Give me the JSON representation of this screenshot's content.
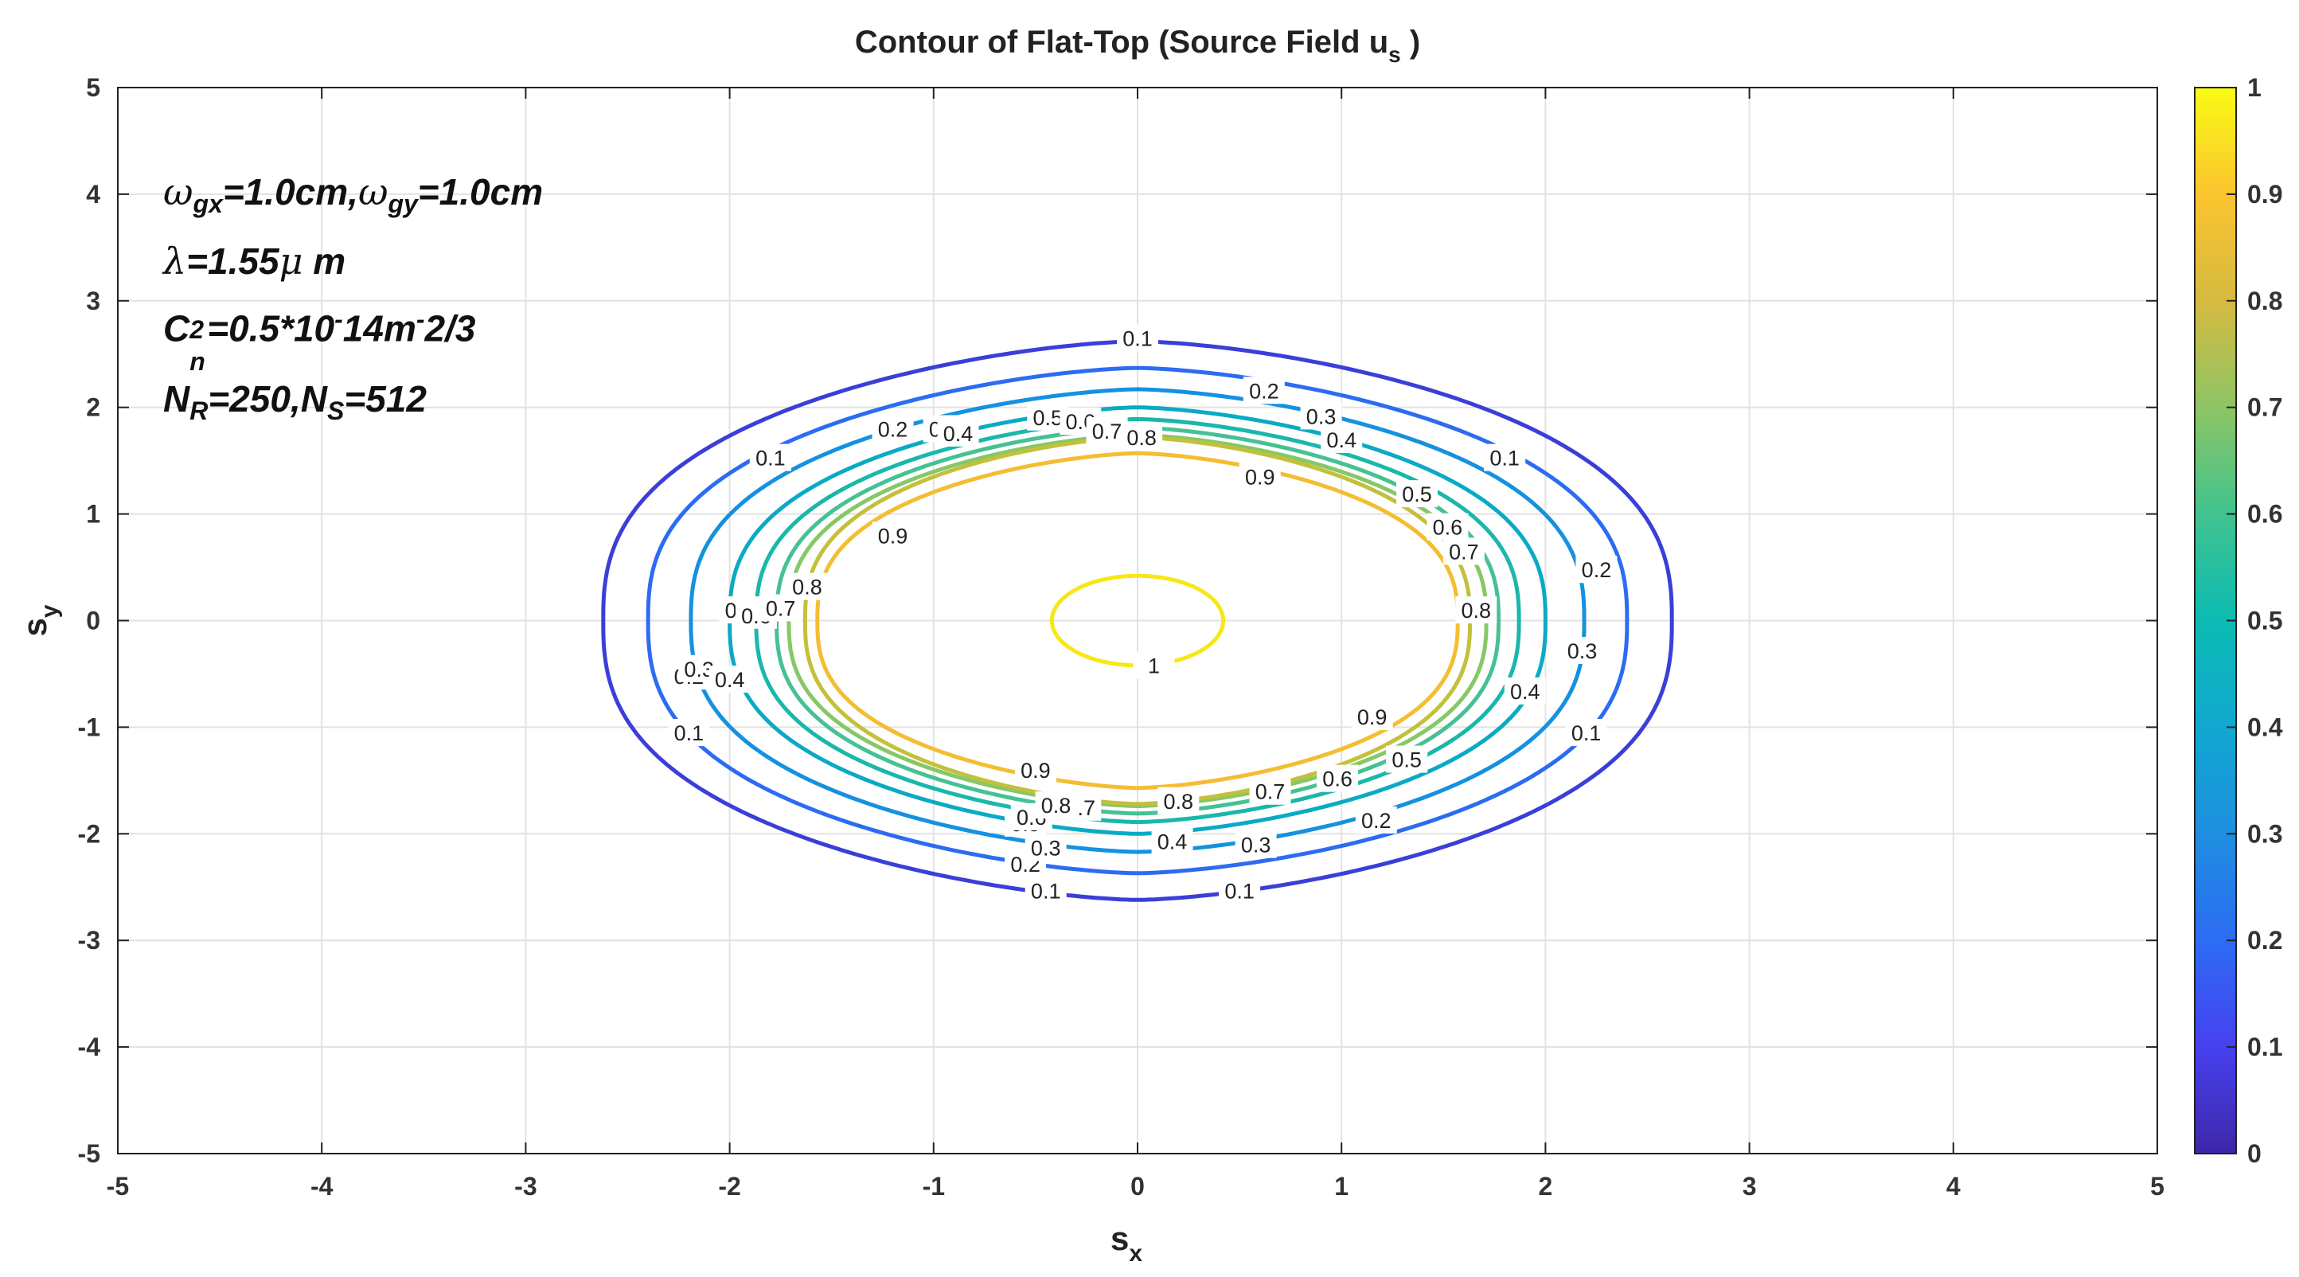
{
  "chart_data": {
    "type": "contour",
    "title": "Contour of Flat-Top (Source Field u",
    "title_sub": "s",
    "title_end": " )",
    "xlabel": "s",
    "xlabel_sub": "x",
    "ylabel": "s",
    "ylabel_sub": "y",
    "xlim": [
      -5,
      5
    ],
    "ylim": [
      -5,
      5
    ],
    "xticks": [
      "-5",
      "-4",
      "-3",
      "-2",
      "-1",
      "0",
      "1",
      "2",
      "3",
      "4",
      "5"
    ],
    "yticks": [
      "5",
      "4",
      "3",
      "2",
      "1",
      "0",
      "-1",
      "-2",
      "-3",
      "-4",
      "-5"
    ],
    "grid": true,
    "colormap": "parula",
    "clim": [
      0,
      1
    ],
    "colorbar_ticks": [
      "1",
      "0.9",
      "0.8",
      "0.7",
      "0.6",
      "0.5",
      "0.4",
      "0.3",
      "0.2",
      "0.1",
      "0"
    ],
    "levels": [
      0.1,
      0.2,
      0.3,
      0.4,
      0.5,
      0.6,
      0.7,
      0.8,
      0.9,
      1
    ],
    "contours": [
      {
        "level": 0.1,
        "x_halfwidth": 2.62,
        "y_halfheight": 2.62,
        "color": "#3a3fd8",
        "labels": [
          [
            "0.1",
            0,
            2.65
          ],
          [
            "0.1",
            -1.8,
            1.53
          ],
          [
            "0.1",
            1.8,
            1.53
          ],
          [
            "0.1",
            -2.2,
            -1.05
          ],
          [
            "0.1",
            2.2,
            -1.05
          ],
          [
            "0.1",
            -0.45,
            -2.53
          ],
          [
            "0.1",
            0.5,
            -2.53
          ]
        ]
      },
      {
        "level": 0.2,
        "x_halfwidth": 2.4,
        "y_halfheight": 2.37,
        "color": "#2c6cf2",
        "labels": [
          [
            "0.2",
            -1.2,
            1.8
          ],
          [
            "0.2",
            0.62,
            2.16
          ],
          [
            "0.2",
            2.25,
            0.48
          ],
          [
            "0.2",
            -2.2,
            -0.52
          ],
          [
            "0.2",
            -0.55,
            -2.28
          ],
          [
            "0.2",
            1.17,
            -1.87
          ]
        ]
      },
      {
        "level": 0.3,
        "x_halfwidth": 2.19,
        "y_halfheight": 2.17,
        "color": "#1591e0",
        "labels": [
          [
            "0.3",
            -0.95,
            1.8
          ],
          [
            "0.3",
            0.9,
            1.92
          ],
          [
            "0.3",
            2.18,
            -0.28
          ],
          [
            "0.3",
            -2.15,
            -0.45
          ],
          [
            "0.3",
            -0.45,
            -2.13
          ],
          [
            "0.3",
            0.58,
            -2.1
          ]
        ]
      },
      {
        "level": 0.4,
        "x_halfwidth": 2.0,
        "y_halfheight": 2.0,
        "color": "#0aaac5",
        "labels": [
          [
            "0.4",
            -0.88,
            1.76
          ],
          [
            "0.4",
            1.0,
            1.7
          ],
          [
            "0.4",
            1.9,
            -0.66
          ],
          [
            "0.4",
            -2.0,
            -0.55
          ],
          [
            "0.4",
            0.17,
            -2.07
          ]
        ]
      },
      {
        "level": 0.5,
        "x_halfwidth": 1.87,
        "y_halfheight": 1.89,
        "color": "#1ab7ab",
        "labels": [
          [
            "0.5",
            -0.44,
            1.91
          ],
          [
            "0.5",
            1.37,
            1.19
          ],
          [
            "0.5",
            1.32,
            -1.3
          ],
          [
            "0.5",
            -1.95,
            0.1
          ],
          [
            "0.5",
            -0.55,
            -1.9
          ]
        ]
      },
      {
        "level": 0.6,
        "x_halfwidth": 1.77,
        "y_halfheight": 1.81,
        "color": "#46c193",
        "labels": [
          [
            "0.6",
            -0.28,
            1.87
          ],
          [
            "0.6",
            1.52,
            0.88
          ],
          [
            "0.6",
            0.98,
            -1.48
          ],
          [
            "0.6",
            -1.87,
            0.05
          ],
          [
            "0.6",
            -0.52,
            -1.84
          ]
        ]
      },
      {
        "level": 0.7,
        "x_halfwidth": 1.71,
        "y_halfheight": 1.74,
        "color": "#86c867",
        "labels": [
          [
            "0.7",
            -0.15,
            1.78
          ],
          [
            "0.7",
            1.6,
            0.65
          ],
          [
            "0.7",
            0.65,
            -1.6
          ],
          [
            "0.7",
            -1.75,
            0.12
          ],
          [
            "0.7",
            -0.28,
            -1.75
          ]
        ]
      },
      {
        "level": 0.8,
        "x_halfwidth": 1.63,
        "y_halfheight": 1.72,
        "color": "#c3c03b",
        "labels": [
          [
            "0.8",
            0.02,
            1.72
          ],
          [
            "0.8",
            1.66,
            0.1
          ],
          [
            "0.8",
            0.2,
            -1.69
          ],
          [
            "0.8",
            -1.62,
            0.32
          ],
          [
            "0.8",
            -0.4,
            -1.73
          ]
        ]
      },
      {
        "level": 0.9,
        "x_halfwidth": 1.57,
        "y_halfheight": 1.57,
        "color": "#f4bd32",
        "labels": [
          [
            "0.9",
            0.6,
            1.35
          ],
          [
            "0.9",
            -1.2,
            0.8
          ],
          [
            "0.9",
            1.15,
            -0.9
          ],
          [
            "0.9",
            -0.5,
            -1.4
          ]
        ]
      },
      {
        "level": 1,
        "x_halfwidth": 0.42,
        "y_halfheight": 0.42,
        "color": "#f7e716",
        "labels": [
          [
            "1",
            0.08,
            -0.42
          ]
        ]
      }
    ]
  },
  "annotation": {
    "line1": {
      "w1": "ω",
      "s1": "gx",
      "t1": "=1.0cm,",
      "w2": "ω",
      "s2": "gy",
      "t2": "=1.0cm"
    },
    "line2": {
      "g": "λ",
      "t": "=1.55",
      "mu": "μ",
      "m": " m"
    },
    "line3": {
      "c": "C",
      "sup": "2",
      "sub": "n",
      "t": "=0.5*10",
      "e1": "-",
      "u": "14m",
      "e2": "-",
      "tail": "2/3"
    },
    "line4": {
      "n1": "N",
      "sub1": "R",
      "t1": "=250,",
      "n2": "N",
      "sub2": "S",
      "t2": "=512"
    }
  }
}
